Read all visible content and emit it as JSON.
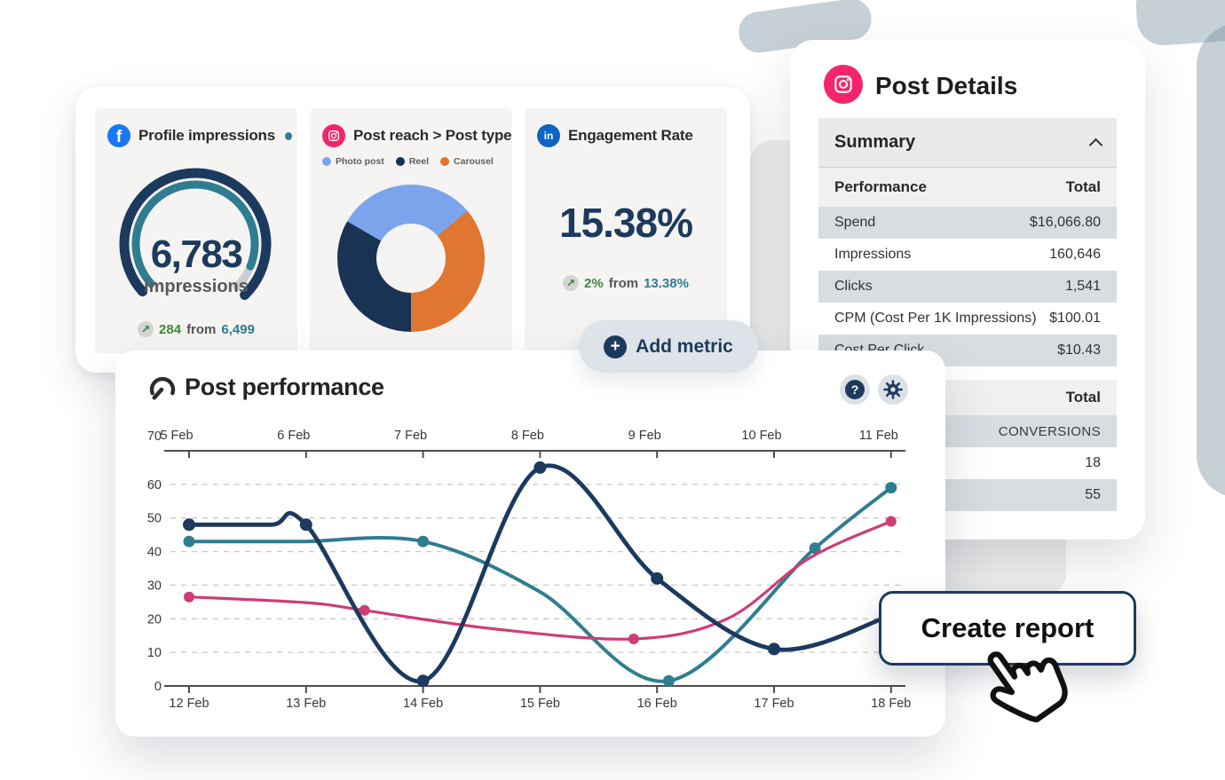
{
  "icons": {
    "trend_up": "↗",
    "plus": "+",
    "help": "?"
  },
  "colors": {
    "navy": "#1c3a5e",
    "teal": "#2f7d91",
    "pink": "#ce3d75",
    "facebook_blue": "#1877f2",
    "linkedin_blue": "#0a66c2",
    "instagram_pink": "#f5256b",
    "green": "#3e8a3e",
    "donut_blue": "#7aa5ec",
    "donut_navy": "#1a3254",
    "donut_orange": "#e0762f"
  },
  "widgets_card": {
    "profile_impressions": {
      "platform": "facebook",
      "title": "Profile impressions",
      "value": "6,783",
      "unit": "impressions",
      "gauge": {
        "progress_pct": 91
      },
      "delta": {
        "change": "284",
        "from_label": "from",
        "previous": "6,499"
      }
    },
    "post_reach": {
      "platform": "instagram",
      "title": "Post reach > Post type",
      "legend": [
        {
          "label": "Photo post",
          "color": "#7aa5ec"
        },
        {
          "label": "Reel",
          "color": "#1a3254"
        },
        {
          "label": "Carousel",
          "color": "#e0762f"
        }
      ],
      "donut": {
        "start_deg": 180,
        "segments": [
          {
            "label": "Reel",
            "color": "#1a3254",
            "span_deg": 120,
            "share_pct": 33
          },
          {
            "label": "Photo post",
            "color": "#7aa5ec",
            "span_deg": 110,
            "share_pct": 31
          },
          {
            "label": "Carousel",
            "color": "#e0762f",
            "span_deg": 130,
            "share_pct": 36
          }
        ]
      }
    },
    "engagement_rate": {
      "platform": "linkedin",
      "title": "Engagement Rate",
      "value": "15.38%",
      "delta": {
        "change": "2%",
        "from_label": "from",
        "previous": "13.38%"
      }
    }
  },
  "add_metric": {
    "label": "Add metric"
  },
  "post_performance": {
    "title": "Post performance",
    "chart_data": {
      "type": "line",
      "x_top_labels": [
        "5 Feb",
        "6 Feb",
        "7 Feb",
        "8 Feb",
        "9 Feb",
        "10 Feb",
        "11 Feb"
      ],
      "x_bottom_labels": [
        "12 Feb",
        "13 Feb",
        "14 Feb",
        "15 Feb",
        "16 Feb",
        "17 Feb",
        "18 Feb"
      ],
      "ylim": [
        0,
        70
      ],
      "yticks": [
        0,
        10,
        20,
        30,
        40,
        50,
        60,
        70
      ],
      "grid": "dashed horizontal",
      "series": [
        {
          "name": "teal-series",
          "color": "#2f7d91",
          "points": [
            [
              12,
              43
            ],
            [
              12.7,
              43
            ],
            [
              13,
              43
            ],
            [
              14,
              43
            ],
            [
              15,
              28
            ],
            [
              16.1,
              1.5
            ],
            [
              17.35,
              41
            ],
            [
              18,
              59
            ]
          ],
          "dots": [
            [
              12,
              43
            ],
            [
              14,
              43
            ],
            [
              16.1,
              1.5
            ],
            [
              17.35,
              41
            ],
            [
              18,
              59
            ]
          ]
        },
        {
          "name": "pink-series",
          "color": "#ce3d75",
          "points": [
            [
              12,
              26.5
            ],
            [
              13,
              24.8
            ],
            [
              13.5,
              22.5
            ],
            [
              14.6,
              17
            ],
            [
              15.8,
              14
            ],
            [
              16.6,
              20
            ],
            [
              17.3,
              38
            ],
            [
              18,
              49
            ]
          ],
          "dots": [
            [
              12,
              26.5
            ],
            [
              13.5,
              22.5
            ],
            [
              15.8,
              14
            ],
            [
              18,
              49
            ]
          ]
        },
        {
          "name": "navy-series",
          "color": "#1c3a5e",
          "points": [
            [
              12,
              48
            ],
            [
              12.7,
              48
            ],
            [
              13,
              48
            ],
            [
              14,
              1.5
            ],
            [
              15,
              65
            ],
            [
              16,
              32
            ],
            [
              17,
              11
            ],
            [
              18,
              21
            ]
          ],
          "dots": [
            [
              12,
              48
            ],
            [
              13,
              48
            ],
            [
              14,
              1.5
            ],
            [
              15,
              65
            ],
            [
              16,
              32
            ],
            [
              17,
              11
            ]
          ]
        }
      ]
    }
  },
  "post_details": {
    "platform": "instagram",
    "title": "Post Details",
    "summary": {
      "header": "Summary",
      "columns": [
        "Performance",
        "Total"
      ],
      "rows": [
        [
          "Spend",
          "$16,066.80"
        ],
        [
          "Impressions",
          "160,646"
        ],
        [
          "Clicks",
          "1,541"
        ],
        [
          "CPM (Cost Per 1K Impressions)",
          "$100.01"
        ],
        [
          "Cost Per Click",
          "$10.43"
        ]
      ]
    },
    "secondary": {
      "total_label": "Total",
      "rows": [
        "CONVERSIONS",
        "18",
        "55"
      ]
    }
  },
  "create_report": {
    "label": "Create report"
  }
}
